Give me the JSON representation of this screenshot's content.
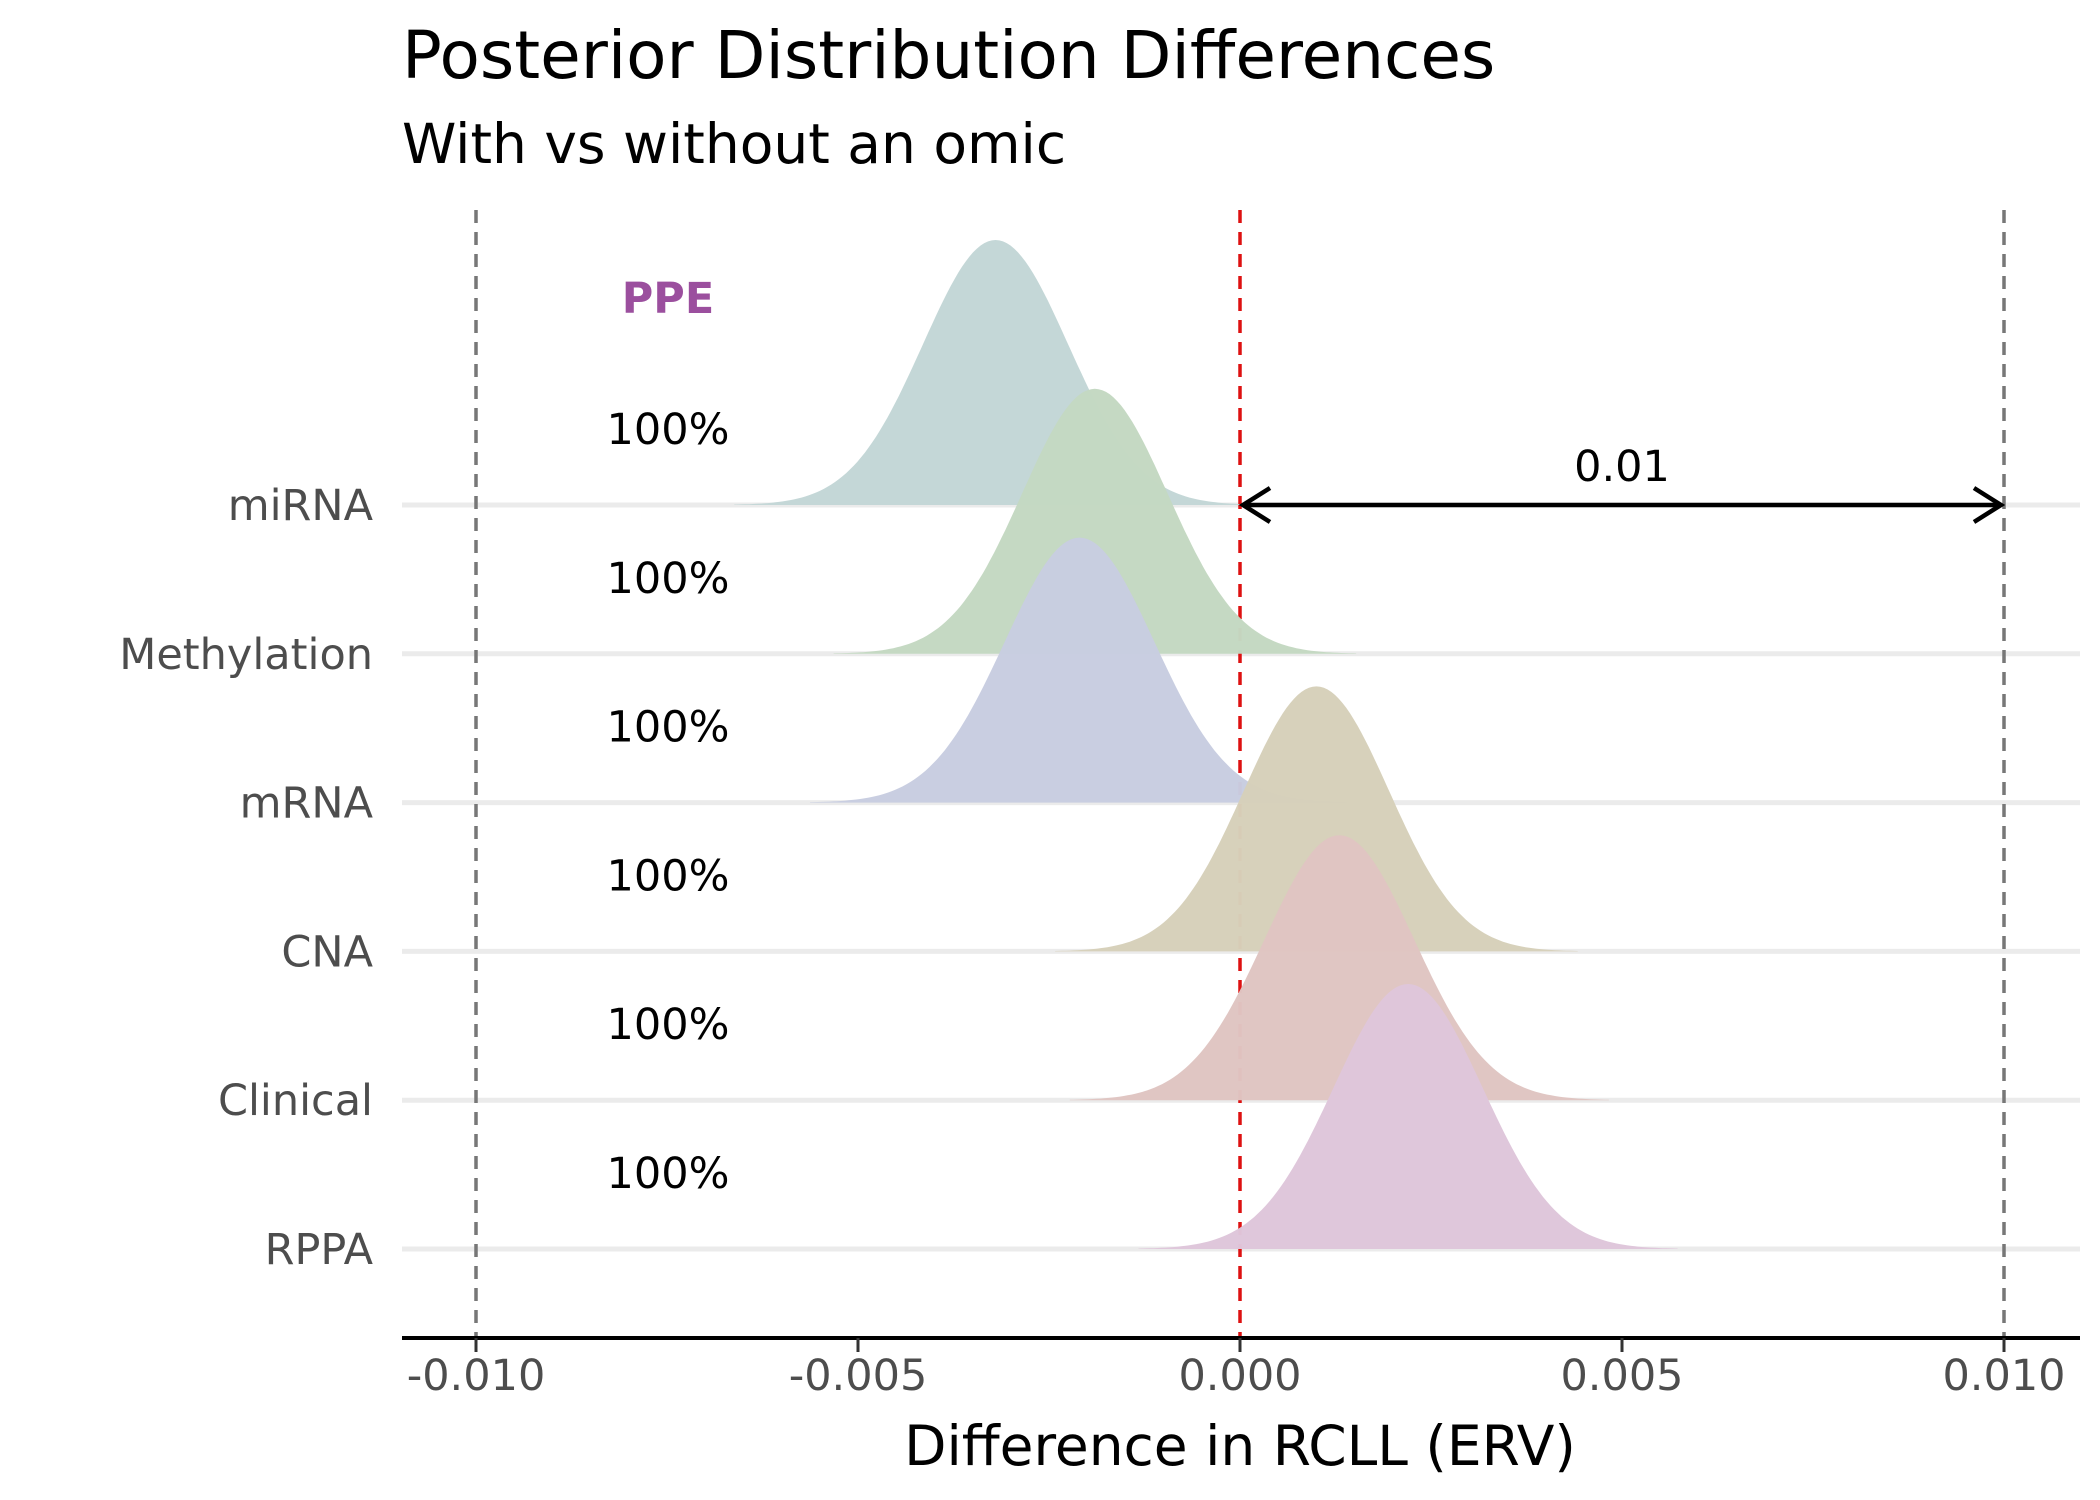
{
  "chart_data": {
    "type": "area",
    "subtype": "ridgeline",
    "title": "Posterior Distribution Differences",
    "subtitle": "With vs without an omic",
    "xlabel": "Difference in RCLL (ERV)",
    "ylabel": "",
    "xlim": [
      -0.011,
      0.011
    ],
    "x_ticks": [
      "-0.010",
      "-0.005",
      "0.000",
      "0.005",
      "0.010"
    ],
    "x_tick_values": [
      -0.01,
      -0.005,
      0.0,
      0.005,
      0.01
    ],
    "grid": "horizontal baselines",
    "reference_lines": [
      {
        "x": -0.01,
        "style": "dashed",
        "color": "#777777"
      },
      {
        "x": 0.0,
        "style": "dashed",
        "color": "#dd1111"
      },
      {
        "x": 0.01,
        "style": "dashed",
        "color": "#777777"
      }
    ],
    "annotation": {
      "label": "0.01",
      "from": 0.0,
      "to": 0.01
    },
    "ppe_header": "PPE",
    "ppe_color": "#9b4f9e",
    "categories": [
      "miRNA",
      "Methylation",
      "mRNA",
      "CNA",
      "Clinical",
      "RPPA"
    ],
    "series": [
      {
        "name": "miRNA",
        "ppe": "100%",
        "mean": -0.0032,
        "sd": 0.00095,
        "color": "#c3d6d6"
      },
      {
        "name": "Methylation",
        "ppe": "100%",
        "mean": -0.0019,
        "sd": 0.00095,
        "color": "#c4d8c2"
      },
      {
        "name": "mRNA",
        "ppe": "100%",
        "mean": -0.0021,
        "sd": 0.00098,
        "color": "#c8cde0"
      },
      {
        "name": "CNA",
        "ppe": "100%",
        "mean": 0.001,
        "sd": 0.00095,
        "color": "#d6d0ba"
      },
      {
        "name": "Clinical",
        "ppe": "100%",
        "mean": 0.0013,
        "sd": 0.00098,
        "color": "#dfc5c2"
      },
      {
        "name": "RPPA",
        "ppe": "100%",
        "mean": 0.0022,
        "sd": 0.00098,
        "color": "#dec6da"
      }
    ]
  }
}
